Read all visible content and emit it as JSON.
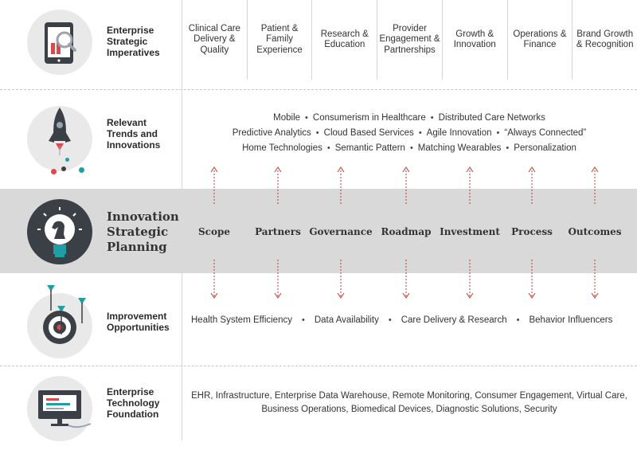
{
  "imperatives": {
    "label": "Enterprise Strategic Imperatives",
    "columns": [
      "Clinical Care Delivery & Quality",
      "Patient & Family Experience",
      "Research & Education",
      "Provider Engagement & Partnerships",
      "Growth & Innovation",
      "Operations & Finance",
      "Brand Growth & Recognition"
    ]
  },
  "trends": {
    "label": "Relevant Trends and Innovations",
    "lines": [
      [
        "Mobile",
        "Consumerism in Healthcare",
        "Distributed Care Networks"
      ],
      [
        "Predictive Analytics",
        "Cloud Based Services",
        "Agile Innovation",
        "“Always Connected”"
      ],
      [
        "Home Technologies",
        "Semantic Pattern",
        "Matching Wearables",
        "Personalization"
      ]
    ]
  },
  "planning": {
    "label": "Innovation Strategic Planning",
    "phases": [
      "Scope",
      "Partners",
      "Governance",
      "Roadmap",
      "Investment",
      "Process",
      "Outcomes"
    ]
  },
  "improvement": {
    "label": "Improvement Opportunities",
    "items": [
      "Health System Efficiency",
      "Data Availability",
      "Care Delivery & Research",
      "Behavior Influencers"
    ]
  },
  "foundation": {
    "label": "Enterprise Technology Foundation",
    "text": "EHR, Infrastructure, Enterprise Data Warehouse, Remote Monitoring, Consumer Engagement, Virtual Care, Business Operations, Biomedical Devices, Diagnostic Solutions, Security"
  },
  "separator_glyph": "•",
  "colors": {
    "accent_red": "#d94b4b",
    "accent_teal": "#1d9fa3",
    "band": "#d9d9d9",
    "arrow": "#c0392b"
  },
  "icons": [
    "tablet-chart-icon",
    "rocket-icon",
    "lightbulb-chess-knight-icon",
    "target-darts-icon",
    "monitor-icon"
  ]
}
